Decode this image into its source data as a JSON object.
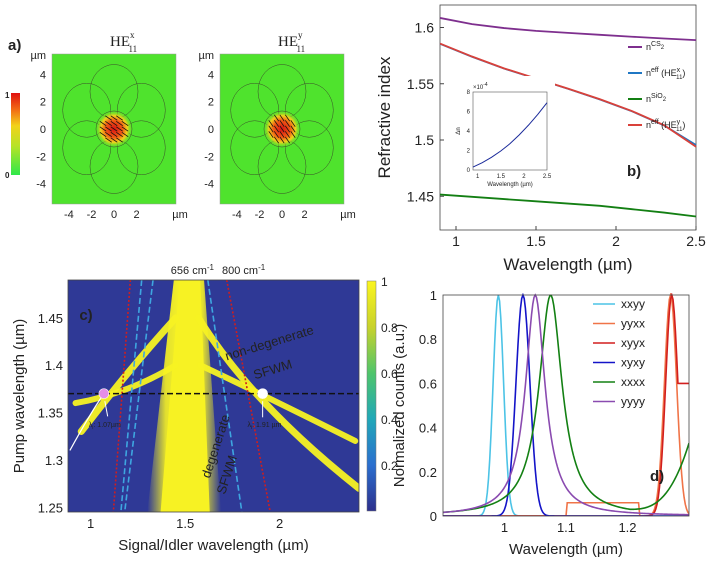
{
  "colors": {
    "field_bg": "#4fe32d",
    "map_bg": "#2f3996",
    "map_high": "#f7f223",
    "cs2": "#7e2f8e",
    "hex": "#1f77c4",
    "sio2": "#137f13",
    "hey": "#d9413a",
    "white_line": "#ffffff",
    "cutoff_656": "#3ea6e0",
    "cutoff_800": "#d01e1e"
  },
  "chart_data": [
    {
      "panel": "a",
      "type": "heatmap",
      "panel_label": "a)",
      "titles": [
        {
          "main": "HE",
          "sup": "x",
          "sub": "11"
        },
        {
          "main": "HE",
          "sup": "y",
          "sub": "11"
        }
      ],
      "colorbar": {
        "top": "1",
        "bottom": "0"
      },
      "yticks": [
        "4",
        "2",
        "0",
        "-2",
        "-4"
      ],
      "xticks": [
        "-4",
        "-2",
        "0",
        "2"
      ],
      "unit": "µm",
      "xlim": [
        -5.5,
        5.5
      ],
      "ylim": [
        -5.5,
        5.5
      ]
    },
    {
      "panel": "b",
      "type": "line",
      "panel_label": "b)",
      "xlabel": "Wavelength (µm)",
      "ylabel": "Refractive index",
      "xlim": [
        0.9,
        2.5
      ],
      "ylim": [
        1.42,
        1.62
      ],
      "xticks": [
        "1",
        "1.5",
        "2",
        "2.5"
      ],
      "yticks": [
        "1.45",
        "1.5",
        "1.55",
        "1.6"
      ],
      "series": [
        {
          "name": "CS2",
          "label_base": "n",
          "label_sub": "CS",
          "label_sub2": "2",
          "label_tail": "",
          "x": [
            0.9,
            1.1,
            1.3,
            1.5,
            1.7,
            1.9,
            2.1,
            2.3,
            2.5
          ],
          "y": [
            1.6085,
            1.603,
            1.5995,
            1.597,
            1.5952,
            1.5935,
            1.5918,
            1.5902,
            1.5888
          ]
        },
        {
          "name": "neff HEx11",
          "label_base": "n",
          "label_sub": "eff",
          "label_sub2": "",
          "label_tail": " (HE",
          "label_tail_sup": "x",
          "label_tail_sub": "11",
          "x": [
            0.9,
            1.1,
            1.3,
            1.5,
            1.7,
            1.9,
            2.1,
            2.3,
            2.5
          ],
          "y": [
            1.5855,
            1.574,
            1.5635,
            1.5545,
            1.5455,
            1.536,
            1.5255,
            1.513,
            1.4955
          ]
        },
        {
          "name": "SiO2",
          "label_base": "n",
          "label_sub": "SiO",
          "label_sub2": "2",
          "label_tail": "",
          "x": [
            0.9,
            1.1,
            1.3,
            1.5,
            1.7,
            1.9,
            2.1,
            2.3,
            2.5
          ],
          "y": [
            1.4515,
            1.4495,
            1.4475,
            1.4455,
            1.4435,
            1.4415,
            1.4385,
            1.4355,
            1.432
          ]
        },
        {
          "name": "neff HEy11",
          "label_base": "n",
          "label_sub": "eff",
          "label_sub2": "",
          "label_tail": " (HE",
          "label_tail_sup": "y",
          "label_tail_sub": "11",
          "x": [
            0.9,
            1.1,
            1.3,
            1.5,
            1.7,
            1.9,
            2.1,
            2.3,
            2.5
          ],
          "y": [
            1.5857,
            1.5742,
            1.5637,
            1.5547,
            1.5457,
            1.5362,
            1.5257,
            1.5132,
            1.494
          ]
        }
      ],
      "inset": {
        "ylabel": "Δn",
        "xlabel": "Wavelength (µm)",
        "scale": "×10",
        "scale_exp": "-4",
        "xticks": [
          "1",
          "1.5",
          "2",
          "2.5"
        ],
        "yticks": [
          "0",
          "2",
          "4",
          "6",
          "8"
        ],
        "xlim": [
          0.9,
          2.5
        ],
        "ylim": [
          0,
          8
        ],
        "x": [
          0.9,
          1.1,
          1.3,
          1.5,
          1.7,
          1.9,
          2.1,
          2.3,
          2.5
        ],
        "y": [
          0.3,
          0.75,
          1.3,
          1.95,
          2.7,
          3.6,
          4.6,
          5.7,
          6.9
        ]
      }
    },
    {
      "panel": "c",
      "type": "heatmap",
      "panel_label": "c)",
      "xlabel": "Signal/Idler wavelength (µm)",
      "ylabel": "Pump wavelength (µm)",
      "xlim": [
        0.88,
        2.42
      ],
      "ylim": [
        1.245,
        1.49
      ],
      "xticks": [
        "1",
        "1.5",
        "2"
      ],
      "yticks": [
        "1.25",
        "1.3",
        "1.35",
        "1.4",
        "1.45"
      ],
      "colorbar_ticks": [
        "1",
        "0.8",
        "0.6",
        "0.4",
        "0.2"
      ],
      "pump_line": 1.37,
      "cutoff_labels": [
        {
          "value": "656",
          "unit": "cm",
          "exp": "-1"
        },
        {
          "value": "800",
          "unit": "cm",
          "exp": "-1"
        }
      ],
      "annotations": {
        "nondegenerate": [
          "non-degenerate",
          "SFWM"
        ],
        "degenerate": [
          "degenerate",
          "SFWM"
        ],
        "idler_signal_left": "λ",
        "idler_signal_left_sub": "i",
        "idler_signal_left_val": ": 1.07µm",
        "idler_signal_right": "λ",
        "idler_signal_right_sub": "i",
        "idler_signal_right_val": ": 1.91 µm"
      },
      "markers": [
        {
          "name": "signal",
          "x": 1.07,
          "y": 1.37,
          "color": "#e58ee8"
        },
        {
          "name": "idler",
          "x": 1.91,
          "y": 1.37,
          "color": "#ffffff"
        }
      ]
    },
    {
      "panel": "d",
      "type": "line",
      "panel_label": "d)",
      "xlabel": "Wavelength (µm)",
      "ylabel": "Normalized counts (a.u.)",
      "xlim": [
        0.9,
        1.3
      ],
      "ylim": [
        0,
        1
      ],
      "xticks": [
        "1",
        "1.1",
        "1.2"
      ],
      "yticks": [
        "0",
        "0.2",
        "0.4",
        "0.6",
        "0.8",
        "1"
      ],
      "series": [
        {
          "name": "xxyy",
          "color": "#4cc3e6",
          "center": 0.99,
          "width": 0.012
        },
        {
          "name": "yyxx",
          "color": "#f07448",
          "center": 1.27,
          "width": 0.014
        },
        {
          "name": "xyyx",
          "color": "#d21e1e",
          "center": 1.272,
          "width": 0.014
        },
        {
          "name": "xyxy",
          "color": "#1414c8",
          "center": 1.03,
          "width": 0.016
        },
        {
          "name": "xxxx",
          "color": "#138013",
          "center": 1.075,
          "width": 0.026
        },
        {
          "name": "yyyy",
          "color": "#8a4bb0",
          "center": 1.05,
          "width": 0.022
        }
      ]
    }
  ]
}
